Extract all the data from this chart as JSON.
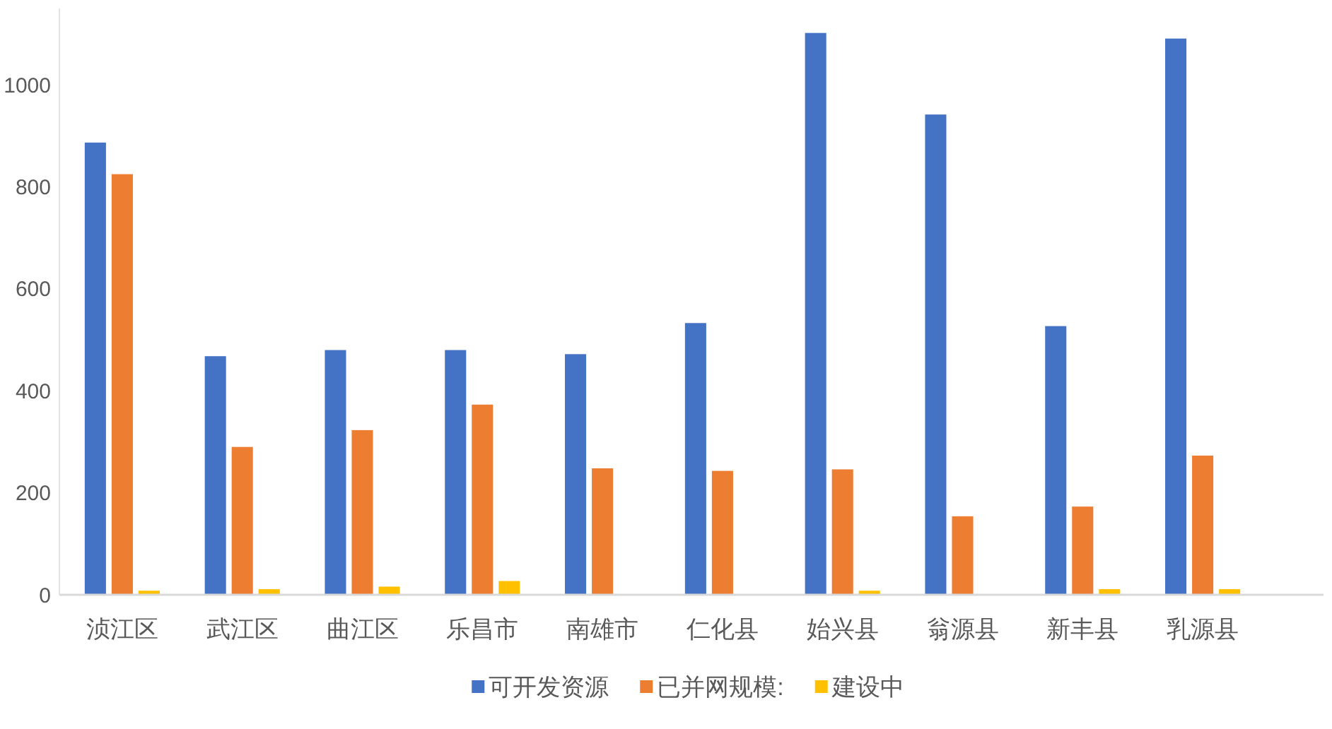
{
  "chart_data": {
    "type": "bar",
    "categories": [
      "浈江区",
      "武江区",
      "曲江区",
      "乐昌市",
      "南雄市",
      "仁化县",
      "始兴县",
      "翁源县",
      "新丰县",
      "乳源县"
    ],
    "series": [
      {
        "name": "可开发资源",
        "color": "#4472c4",
        "values": [
          887,
          468,
          480,
          480,
          472,
          533,
          1102,
          942,
          527,
          1091
        ]
      },
      {
        "name": "已并网规模:",
        "color": "#ed7d31",
        "values": [
          825,
          290,
          323,
          373,
          248,
          243,
          246,
          154,
          173,
          273
        ]
      },
      {
        "name": "建设中",
        "color": "#ffc000",
        "values": [
          8,
          11,
          16,
          27,
          null,
          null,
          8,
          null,
          11,
          11
        ]
      }
    ],
    "ylim": [
      0,
      1150
    ],
    "yticks": [
      0,
      200,
      400,
      600,
      800,
      1000
    ],
    "legend": "bottom"
  }
}
